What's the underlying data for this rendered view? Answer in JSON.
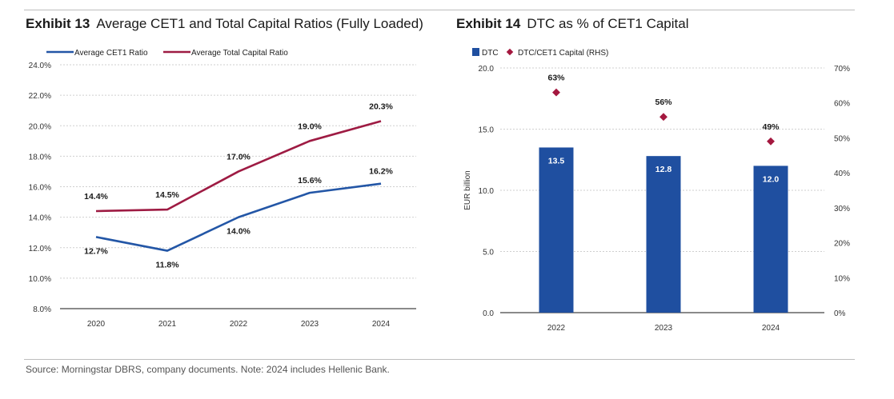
{
  "exhibit13": {
    "label": "Exhibit 13",
    "title": "Average CET1 and Total Capital Ratios (Fully Loaded)"
  },
  "exhibit14": {
    "label": "Exhibit 14",
    "title": "DTC as % of CET1 Capital"
  },
  "source": "Source: Morningstar DBRS, company documents. Note: 2024 includes Hellenic Bank.",
  "colors": {
    "blue": "#2356a6",
    "red": "#9e1b43",
    "bar": "#1f4fa0",
    "diamond": "#a4183f",
    "grid": "#cfcfcf"
  },
  "chart_data": [
    {
      "type": "line",
      "title": "Average CET1 and Total Capital Ratios (Fully Loaded)",
      "categories": [
        "2020",
        "2021",
        "2022",
        "2023",
        "2024"
      ],
      "series": [
        {
          "name": "Average CET1 Ratio",
          "values": [
            12.7,
            11.8,
            14.0,
            15.6,
            16.2
          ],
          "labels": [
            "12.7%",
            "11.8%",
            "14.0%",
            "15.6%",
            "16.2%"
          ]
        },
        {
          "name": "Average Total Capital Ratio",
          "values": [
            14.4,
            14.5,
            17.0,
            19.0,
            20.3
          ],
          "labels": [
            "14.4%",
            "14.5%",
            "17.0%",
            "19.0%",
            "20.3%"
          ]
        }
      ],
      "ylim": [
        8,
        24
      ],
      "yticks": [
        "8.0%",
        "10.0%",
        "12.0%",
        "14.0%",
        "16.0%",
        "18.0%",
        "20.0%",
        "22.0%",
        "24.0%"
      ],
      "legend": "top-left",
      "grid": true
    },
    {
      "type": "bar",
      "title": "DTC as % of CET1 Capital",
      "categories": [
        "2022",
        "2023",
        "2024"
      ],
      "series": [
        {
          "name": "DTC",
          "axis": "left",
          "values": [
            13.5,
            12.8,
            12.0
          ],
          "labels": [
            "13.5",
            "12.8",
            "12.0"
          ]
        },
        {
          "name": "DTC/CET1 Capital (RHS)",
          "axis": "right",
          "values": [
            63,
            56,
            49
          ],
          "labels": [
            "63%",
            "56%",
            "49%"
          ]
        }
      ],
      "ylabel": "EUR billion",
      "ylim": [
        0,
        20
      ],
      "yticks": [
        "0.0",
        "5.0",
        "10.0",
        "15.0",
        "20.0"
      ],
      "y2lim": [
        0,
        70
      ],
      "y2ticks": [
        "0%",
        "10%",
        "20%",
        "30%",
        "40%",
        "50%",
        "60%",
        "70%"
      ],
      "legend": "top-left",
      "grid": true
    }
  ]
}
